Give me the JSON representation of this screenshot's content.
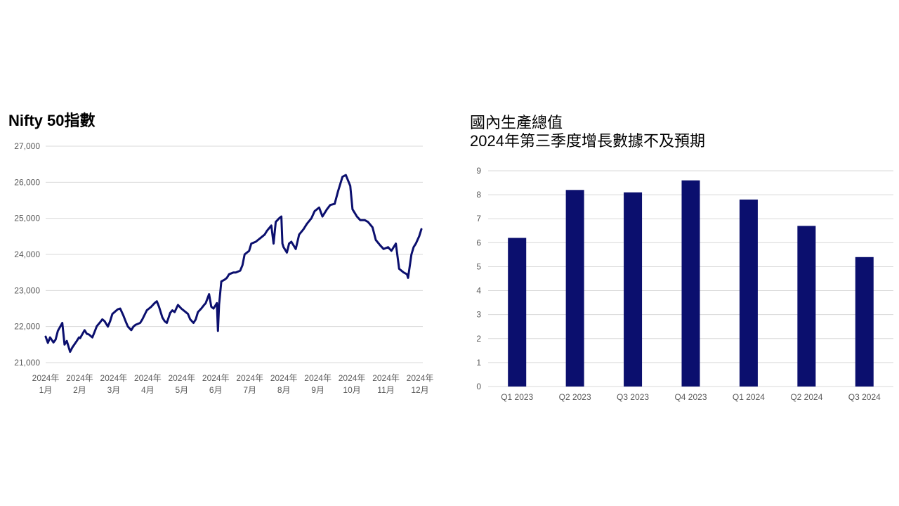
{
  "chart_data": [
    {
      "type": "line",
      "title": "Nifty 50指數",
      "ylim": [
        21000,
        27000
      ],
      "yticks": [
        "21,000",
        "22,000",
        "23,000",
        "24,000",
        "25,000",
        "26,000",
        "27,000"
      ],
      "ytick_values": [
        21000,
        22000,
        23000,
        24000,
        25000,
        26000,
        27000
      ],
      "xticks": [
        {
          "year": "2024年",
          "month": "1月"
        },
        {
          "year": "2024年",
          "month": "2月"
        },
        {
          "year": "2024年",
          "month": "3月"
        },
        {
          "year": "2024年",
          "month": "4月"
        },
        {
          "year": "2024年",
          "month": "5月"
        },
        {
          "year": "2024年",
          "month": "6月"
        },
        {
          "year": "2024年",
          "month": "7月"
        },
        {
          "year": "2024年",
          "month": "8月"
        },
        {
          "year": "2024年",
          "month": "9月"
        },
        {
          "year": "2024年",
          "month": "10月"
        },
        {
          "year": "2024年",
          "month": "11月"
        },
        {
          "year": "2024年",
          "month": "12月"
        }
      ],
      "grid": true,
      "color": "#0b0f6e",
      "x": [
        "2024-01-01",
        "2024-01-03",
        "2024-01-05",
        "2024-01-08",
        "2024-01-10",
        "2024-01-12",
        "2024-01-16",
        "2024-01-18",
        "2024-01-20",
        "2024-01-23",
        "2024-01-25",
        "2024-01-29",
        "2024-01-31",
        "2024-02-01",
        "2024-02-05",
        "2024-02-07",
        "2024-02-09",
        "2024-02-12",
        "2024-02-14",
        "2024-02-16",
        "2024-02-19",
        "2024-02-21",
        "2024-02-23",
        "2024-02-26",
        "2024-02-28",
        "2024-03-01",
        "2024-03-04",
        "2024-03-06",
        "2024-03-08",
        "2024-03-11",
        "2024-03-13",
        "2024-03-15",
        "2024-03-18",
        "2024-03-20",
        "2024-03-22",
        "2024-03-26",
        "2024-03-28",
        "2024-04-01",
        "2024-04-03",
        "2024-04-05",
        "2024-04-08",
        "2024-04-10",
        "2024-04-12",
        "2024-04-15",
        "2024-04-17",
        "2024-04-19",
        "2024-04-22",
        "2024-04-24",
        "2024-04-26",
        "2024-04-29",
        "2024-05-02",
        "2024-05-06",
        "2024-05-08",
        "2024-05-10",
        "2024-05-13",
        "2024-05-15",
        "2024-05-17",
        "2024-05-20",
        "2024-05-22",
        "2024-05-24",
        "2024-05-27",
        "2024-05-29",
        "2024-05-31",
        "2024-06-03",
        "2024-06-04",
        "2024-06-05",
        "2024-06-07",
        "2024-06-10",
        "2024-06-12",
        "2024-06-14",
        "2024-06-18",
        "2024-06-20",
        "2024-06-24",
        "2024-06-26",
        "2024-06-28",
        "2024-07-02",
        "2024-07-04",
        "2024-07-08",
        "2024-07-10",
        "2024-07-12",
        "2024-07-16",
        "2024-07-18",
        "2024-07-22",
        "2024-07-24",
        "2024-07-26",
        "2024-07-29",
        "2024-07-31",
        "2024-08-01",
        "2024-08-02",
        "2024-08-05",
        "2024-08-07",
        "2024-08-09",
        "2024-08-13",
        "2024-08-16",
        "2024-08-20",
        "2024-08-23",
        "2024-08-27",
        "2024-08-30",
        "2024-09-03",
        "2024-09-06",
        "2024-09-10",
        "2024-09-13",
        "2024-09-17",
        "2024-09-20",
        "2024-09-24",
        "2024-09-27",
        "2024-10-01",
        "2024-10-03",
        "2024-10-07",
        "2024-10-10",
        "2024-10-14",
        "2024-10-17",
        "2024-10-21",
        "2024-10-24",
        "2024-10-28",
        "2024-10-31",
        "2024-11-04",
        "2024-11-07",
        "2024-11-11",
        "2024-11-14",
        "2024-11-18",
        "2024-11-21",
        "2024-11-22",
        "2024-11-25",
        "2024-11-27",
        "2024-11-29",
        "2024-12-02",
        "2024-12-04"
      ],
      "values": [
        21720,
        21550,
        21700,
        21560,
        21640,
        21880,
        22100,
        21500,
        21600,
        21300,
        21420,
        21600,
        21700,
        21680,
        21900,
        21800,
        21780,
        21700,
        21850,
        22010,
        22120,
        22200,
        22150,
        22000,
        22150,
        22350,
        22430,
        22480,
        22500,
        22300,
        22140,
        22000,
        21900,
        22000,
        22050,
        22100,
        22200,
        22450,
        22500,
        22550,
        22650,
        22700,
        22550,
        22250,
        22150,
        22100,
        22380,
        22450,
        22400,
        22600,
        22500,
        22400,
        22350,
        22200,
        22100,
        22200,
        22400,
        22500,
        22580,
        22650,
        22900,
        22550,
        22500,
        22650,
        21880,
        22600,
        23250,
        23300,
        23350,
        23450,
        23500,
        23500,
        23550,
        23700,
        24000,
        24100,
        24300,
        24350,
        24400,
        24450,
        24550,
        24650,
        24800,
        24300,
        24900,
        25000,
        25050,
        24300,
        24200,
        24050,
        24300,
        24350,
        24150,
        24550,
        24700,
        24850,
        25000,
        25200,
        25300,
        25050,
        25250,
        25370,
        25400,
        25750,
        26150,
        26200,
        25900,
        25250,
        25050,
        24950,
        24950,
        24900,
        24750,
        24400,
        24250,
        24150,
        24200,
        24100,
        24300,
        23600,
        23500,
        23450,
        23350,
        24000,
        24200,
        24300,
        24500,
        24700
      ]
    },
    {
      "type": "bar",
      "title": "國內生產總值",
      "subtitle": "2024年第三季度增長數據不及預期",
      "categories": [
        "Q1 2023",
        "Q2 2023",
        "Q3 2023",
        "Q4 2023",
        "Q1 2024",
        "Q2 2024",
        "Q3 2024"
      ],
      "values": [
        6.2,
        8.2,
        8.1,
        8.6,
        7.8,
        6.7,
        5.4
      ],
      "ylim": [
        0,
        9
      ],
      "yticks": [
        "0",
        "1",
        "2",
        "3",
        "4",
        "5",
        "6",
        "7",
        "8",
        "9"
      ],
      "grid": true,
      "color": "#0b0f6e"
    }
  ]
}
